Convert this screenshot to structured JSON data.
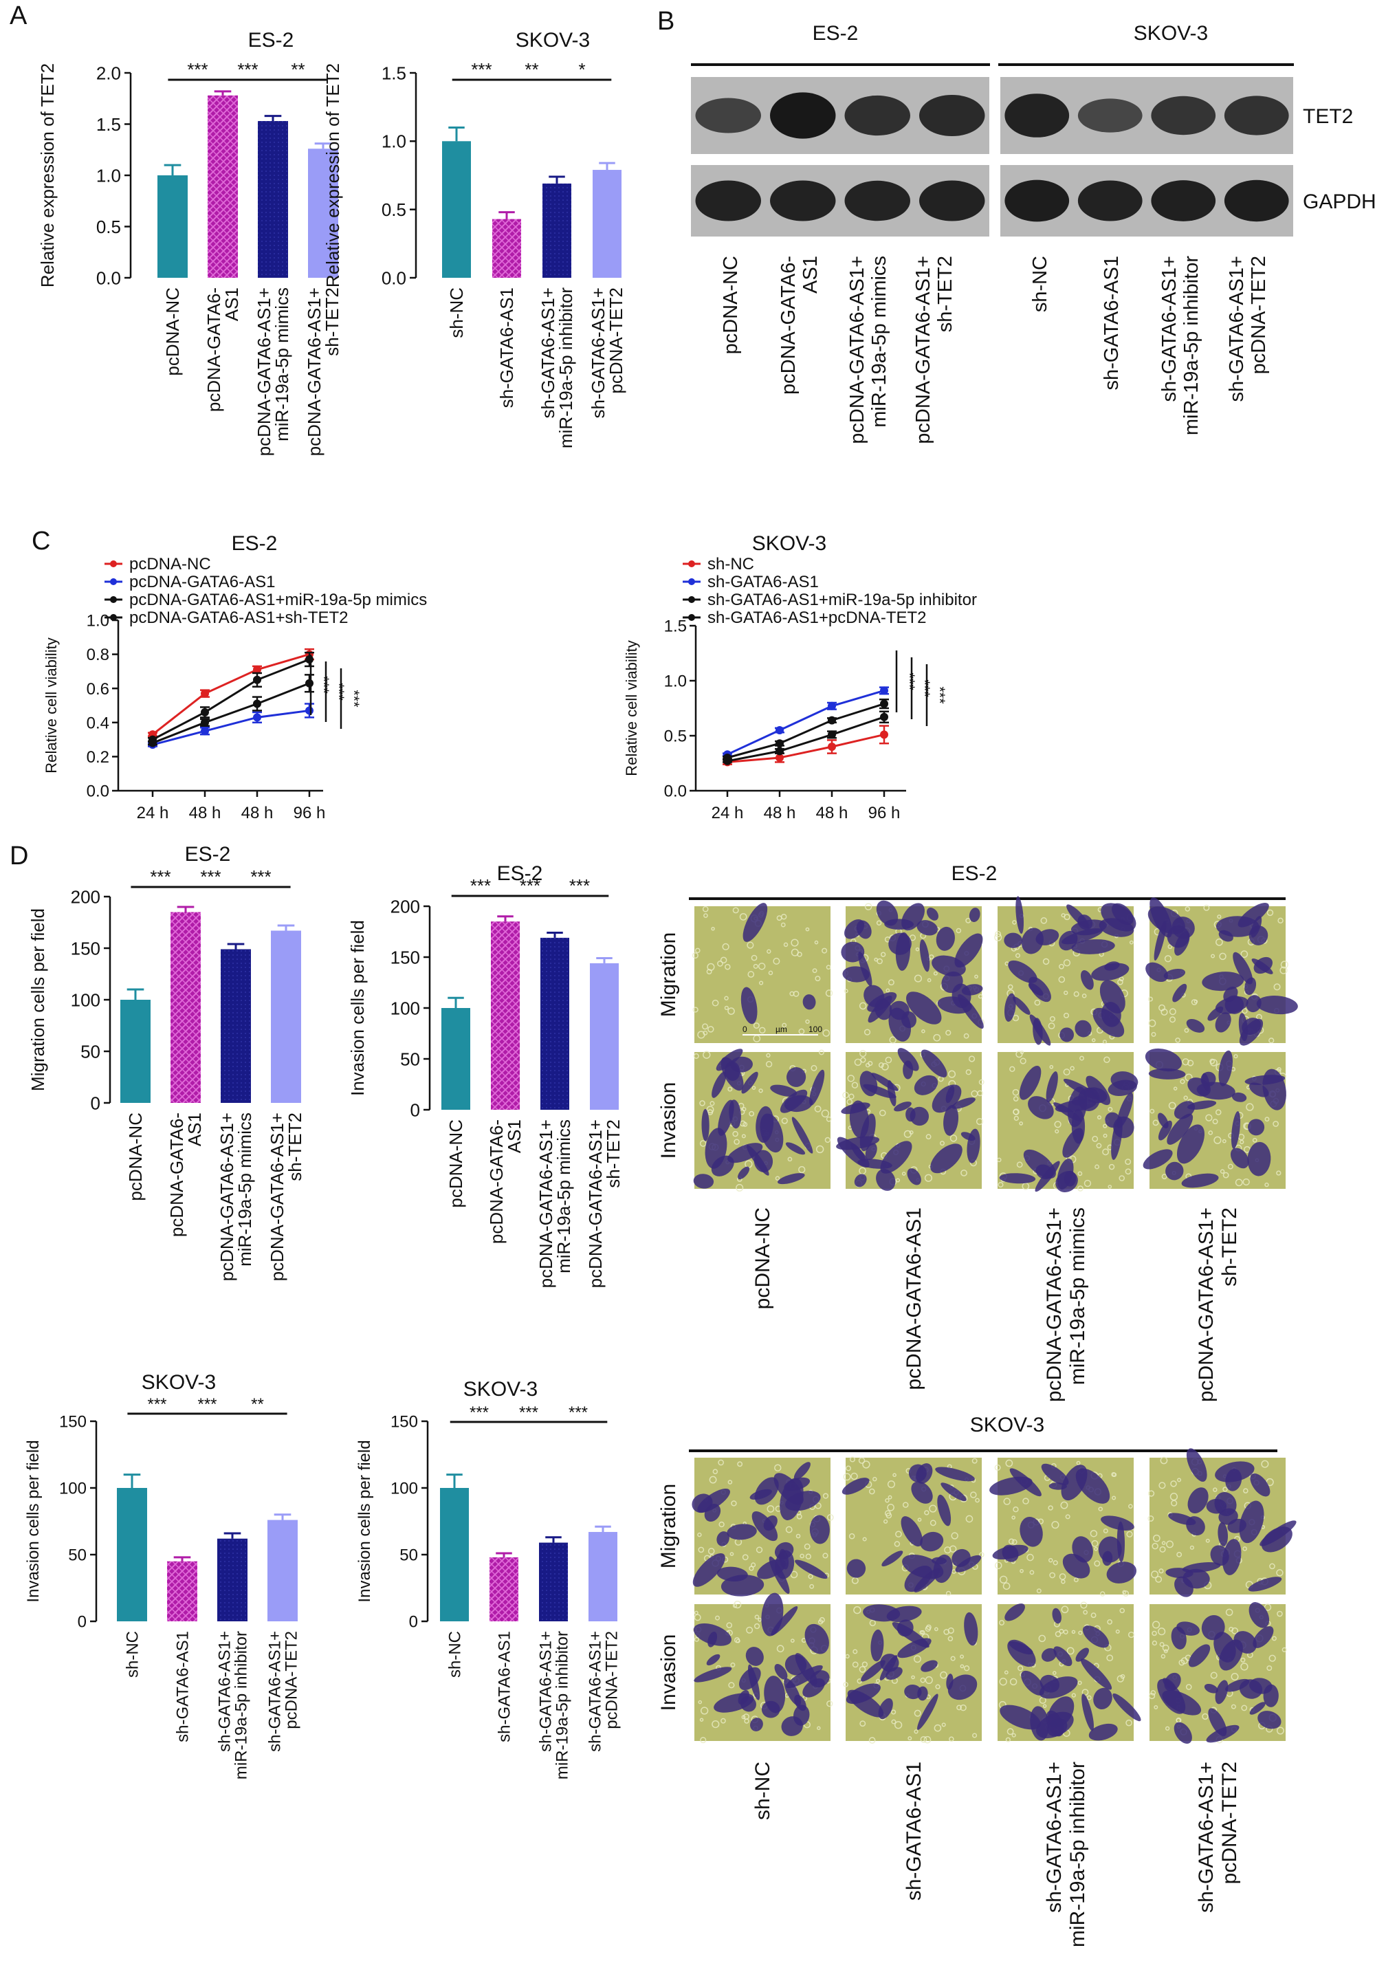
{
  "panel_letters": {
    "a": "A",
    "b": "B",
    "c": "C",
    "d": "D"
  },
  "colors": {
    "teal": "#1f8ea0",
    "magenta": "#b01ca8",
    "navy": "#181a86",
    "lavender": "#9a9cf7",
    "red": "#dd2222",
    "blue": "#1f30d8",
    "black": "#111111",
    "micrograph_bg": "#b9bc6d",
    "stain": "#3a2a7a"
  },
  "chart_data": [
    {
      "id": "a-es2",
      "type": "bar",
      "title": "ES-2",
      "ylabel": "Relative expression of TET2",
      "ylim": [
        0,
        2.0
      ],
      "yticks": [
        "0.0",
        "0.5",
        "1.0",
        "1.5",
        "2.0"
      ],
      "categories": [
        [
          "pcDNA-NC"
        ],
        [
          "pcDNA-GATA6-",
          "AS1"
        ],
        [
          "pcDNA-GATA6-AS1+",
          "miR-19a-5p mimics"
        ],
        [
          "pcDNA-GATA6-AS1+",
          "sh-TET2"
        ]
      ],
      "values": [
        1.0,
        1.78,
        1.53,
        1.26
      ],
      "errors": [
        0.1,
        0.04,
        0.05,
        0.05
      ],
      "significance": [
        {
          "from": 0,
          "to": 1,
          "label": "***"
        },
        {
          "from": 1,
          "to": 2,
          "label": "***"
        },
        {
          "from": 2,
          "to": 3,
          "label": "**"
        }
      ]
    },
    {
      "id": "a-skov3",
      "type": "bar",
      "title": "SKOV-3",
      "ylabel": "Relative expression of TET2",
      "ylim": [
        0,
        1.5
      ],
      "yticks": [
        "0.0",
        "0.5",
        "1.0",
        "1.5"
      ],
      "categories": [
        [
          "sh-NC"
        ],
        [
          "sh-GATA6-AS1"
        ],
        [
          "sh-GATA6-AS1+",
          "miR-19a-5p inhibitor"
        ],
        [
          "sh-GATA6-AS1+",
          "pcDNA-TET2"
        ]
      ],
      "values": [
        1.0,
        0.43,
        0.69,
        0.79
      ],
      "errors": [
        0.1,
        0.05,
        0.05,
        0.05
      ],
      "significance": [
        {
          "from": 0,
          "to": 1,
          "label": "***"
        },
        {
          "from": 1,
          "to": 2,
          "label": "**"
        },
        {
          "from": 2,
          "to": 3,
          "label": "*"
        }
      ]
    },
    {
      "id": "c-es2",
      "type": "line",
      "title": "ES-2",
      "ylabel": "Relative cell viability",
      "ylim": [
        0.0,
        1.0
      ],
      "yticks": [
        "0.0",
        "0.2",
        "0.4",
        "0.6",
        "0.8",
        "1.0"
      ],
      "x": [
        "24 h",
        "48 h",
        "48 h",
        "96 h"
      ],
      "series": [
        {
          "name": "pcDNA-NC",
          "color": "red",
          "values": [
            0.33,
            0.57,
            0.71,
            0.8
          ],
          "errors": [
            0.01,
            0.02,
            0.02,
            0.03
          ]
        },
        {
          "name": "pcDNA-GATA6-AS1",
          "color": "blue",
          "values": [
            0.27,
            0.35,
            0.43,
            0.47
          ],
          "errors": [
            0.01,
            0.02,
            0.03,
            0.04
          ]
        },
        {
          "name": "pcDNA-GATA6-AS1+miR-19a-5p mimics",
          "color": "black",
          "values": [
            0.3,
            0.46,
            0.65,
            0.77
          ],
          "errors": [
            0.01,
            0.03,
            0.04,
            0.04
          ]
        },
        {
          "name": "pcDNA-GATA6-AS1+sh-TET2",
          "color": "black",
          "values": [
            0.28,
            0.4,
            0.51,
            0.63
          ],
          "errors": [
            0.01,
            0.02,
            0.04,
            0.05
          ]
        }
      ],
      "significance": [
        "***",
        "***",
        "***"
      ]
    },
    {
      "id": "c-skov3",
      "type": "line",
      "title": "SKOV-3",
      "ylabel": "Relative cell viability",
      "ylim": [
        0.0,
        1.5
      ],
      "yticks": [
        "0.0",
        "0.5",
        "1.0",
        "1.5"
      ],
      "x": [
        "24 h",
        "48 h",
        "48 h",
        "96 h"
      ],
      "series": [
        {
          "name": "sh-NC",
          "color": "red",
          "values": [
            0.26,
            0.3,
            0.4,
            0.51
          ],
          "errors": [
            0.02,
            0.04,
            0.06,
            0.08
          ]
        },
        {
          "name": "sh-GATA6-AS1",
          "color": "blue",
          "values": [
            0.33,
            0.55,
            0.77,
            0.91
          ],
          "errors": [
            0.01,
            0.02,
            0.03,
            0.03
          ]
        },
        {
          "name": "sh-GATA6-AS1+miR-19a-5p inhibitor",
          "color": "black",
          "values": [
            0.3,
            0.43,
            0.64,
            0.79
          ],
          "errors": [
            0.01,
            0.02,
            0.02,
            0.04
          ]
        },
        {
          "name": "sh-GATA6-AS1+pcDNA-TET2",
          "color": "black",
          "values": [
            0.27,
            0.36,
            0.51,
            0.67
          ],
          "errors": [
            0.01,
            0.02,
            0.03,
            0.05
          ]
        }
      ],
      "significance": [
        "***",
        "***",
        "***"
      ]
    },
    {
      "id": "d-es2-migration",
      "type": "bar",
      "title": "ES-2",
      "ylabel": "Migration cells per field",
      "ylim": [
        0,
        200
      ],
      "yticks": [
        "0",
        "50",
        "100",
        "150",
        "200"
      ],
      "categories": [
        [
          "pcDNA-NC"
        ],
        [
          "pcDNA-GATA6-",
          "AS1"
        ],
        [
          "pcDNA-GATA6-AS1+",
          "miR-19a-5p mimics"
        ],
        [
          "pcDNA-GATA6-AS1+",
          "sh-TET2"
        ]
      ],
      "values": [
        100,
        185,
        149,
        167
      ],
      "errors": [
        10,
        5,
        5,
        5
      ],
      "significance": [
        {
          "from": 0,
          "to": 1,
          "label": "***"
        },
        {
          "from": 1,
          "to": 2,
          "label": "***"
        },
        {
          "from": 2,
          "to": 3,
          "label": "***"
        }
      ]
    },
    {
      "id": "d-es2-invasion",
      "type": "bar",
      "title": "ES-2",
      "ylabel": "Invasion cells per field",
      "ylim": [
        0,
        200
      ],
      "yticks": [
        "0",
        "50",
        "100",
        "150",
        "200"
      ],
      "categories": [
        [
          "pcDNA-NC"
        ],
        [
          "pcDNA-GATA6-",
          "AS1"
        ],
        [
          "pcDNA-GATA6-AS1+",
          "miR-19a-5p mimics"
        ],
        [
          "pcDNA-GATA6-AS1+",
          "sh-TET2"
        ]
      ],
      "values": [
        100,
        185,
        169,
        144
      ],
      "errors": [
        10,
        5,
        5,
        5
      ],
      "significance": [
        {
          "from": 0,
          "to": 1,
          "label": "***"
        },
        {
          "from": 1,
          "to": 2,
          "label": "***"
        },
        {
          "from": 2,
          "to": 3,
          "label": "***"
        }
      ]
    },
    {
      "id": "d-skov3-migration",
      "type": "bar",
      "title": "SKOV-3",
      "ylabel": "Invasion cells per field",
      "ylim": [
        0,
        150
      ],
      "yticks": [
        "0",
        "50",
        "100",
        "150"
      ],
      "categories": [
        [
          "sh-NC"
        ],
        [
          "sh-GATA6-AS1"
        ],
        [
          "sh-GATA6-AS1+",
          "miR-19a-5p inhibitor"
        ],
        [
          "sh-GATA6-AS1+",
          "pcDNA-TET2"
        ]
      ],
      "values": [
        100,
        45,
        62,
        76
      ],
      "errors": [
        10,
        3,
        4,
        4
      ],
      "significance": [
        {
          "from": 0,
          "to": 1,
          "label": "***"
        },
        {
          "from": 1,
          "to": 2,
          "label": "***"
        },
        {
          "from": 2,
          "to": 3,
          "label": "**"
        }
      ]
    },
    {
      "id": "d-skov3-invasion",
      "type": "bar",
      "title": "SKOV-3",
      "ylabel": "Invasion cells per field",
      "ylim": [
        0,
        150
      ],
      "yticks": [
        "0",
        "50",
        "100",
        "150"
      ],
      "categories": [
        [
          "sh-NC"
        ],
        [
          "sh-GATA6-AS1"
        ],
        [
          "sh-GATA6-AS1+",
          "miR-19a-5p inhibitor"
        ],
        [
          "sh-GATA6-AS1+",
          "pcDNA-TET2"
        ]
      ],
      "values": [
        100,
        48,
        59,
        67
      ],
      "errors": [
        10,
        3,
        4,
        4
      ],
      "significance": [
        {
          "from": 0,
          "to": 1,
          "label": "***"
        },
        {
          "from": 1,
          "to": 2,
          "label": "***"
        },
        {
          "from": 2,
          "to": 3,
          "label": "***"
        }
      ]
    }
  ],
  "western_blot": {
    "groups": [
      "ES-2",
      "SKOV-3"
    ],
    "bands": [
      "TET2",
      "GAPDH"
    ],
    "lanes": [
      [
        "pcDNA-NC"
      ],
      [
        "pcDNA-GATA6-",
        "AS1"
      ],
      [
        "pcDNA-GATA6-AS1+",
        "miR-19a-5p mimics"
      ],
      [
        "pcDNA-GATA6-AS1+",
        "sh-TET2"
      ],
      [
        "sh-NC"
      ],
      [
        "sh-GATA6-AS1"
      ],
      [
        "sh-GATA6-AS1+",
        "miR-19a-5p inhibitor"
      ],
      [
        "sh-GATA6-AS1+",
        "pcDNA-TET2"
      ]
    ],
    "tet2_intensity": [
      0.55,
      1.0,
      0.75,
      0.8,
      0.9,
      0.5,
      0.7,
      0.72
    ],
    "gapdh_intensity": [
      0.9,
      0.9,
      0.88,
      0.9,
      0.95,
      0.9,
      0.92,
      0.94
    ]
  },
  "micrographs": {
    "es2": {
      "title": "ES-2",
      "rows": [
        "Migration",
        "Invasion"
      ],
      "columns": [
        [
          "pcDNA-NC"
        ],
        [
          "pcDNA-GATA6-AS1"
        ],
        [
          "pcDNA-GATA6-AS1+",
          "miR-19a-5p mimics"
        ],
        [
          "pcDNA-GATA6-AS1+",
          "sh-TET2"
        ]
      ],
      "scale_bar": [
        "0",
        "µm",
        "100"
      ]
    },
    "skov3": {
      "title": "SKOV-3",
      "rows": [
        "Migration",
        "Invasion"
      ],
      "columns": [
        [
          "sh-NC"
        ],
        [
          "sh-GATA6-AS1"
        ],
        [
          "sh-GATA6-AS1+",
          "miR-19a-5p inhibitor"
        ],
        [
          "sh-GATA6-AS1+",
          "pcDNA-TET2"
        ]
      ]
    }
  }
}
